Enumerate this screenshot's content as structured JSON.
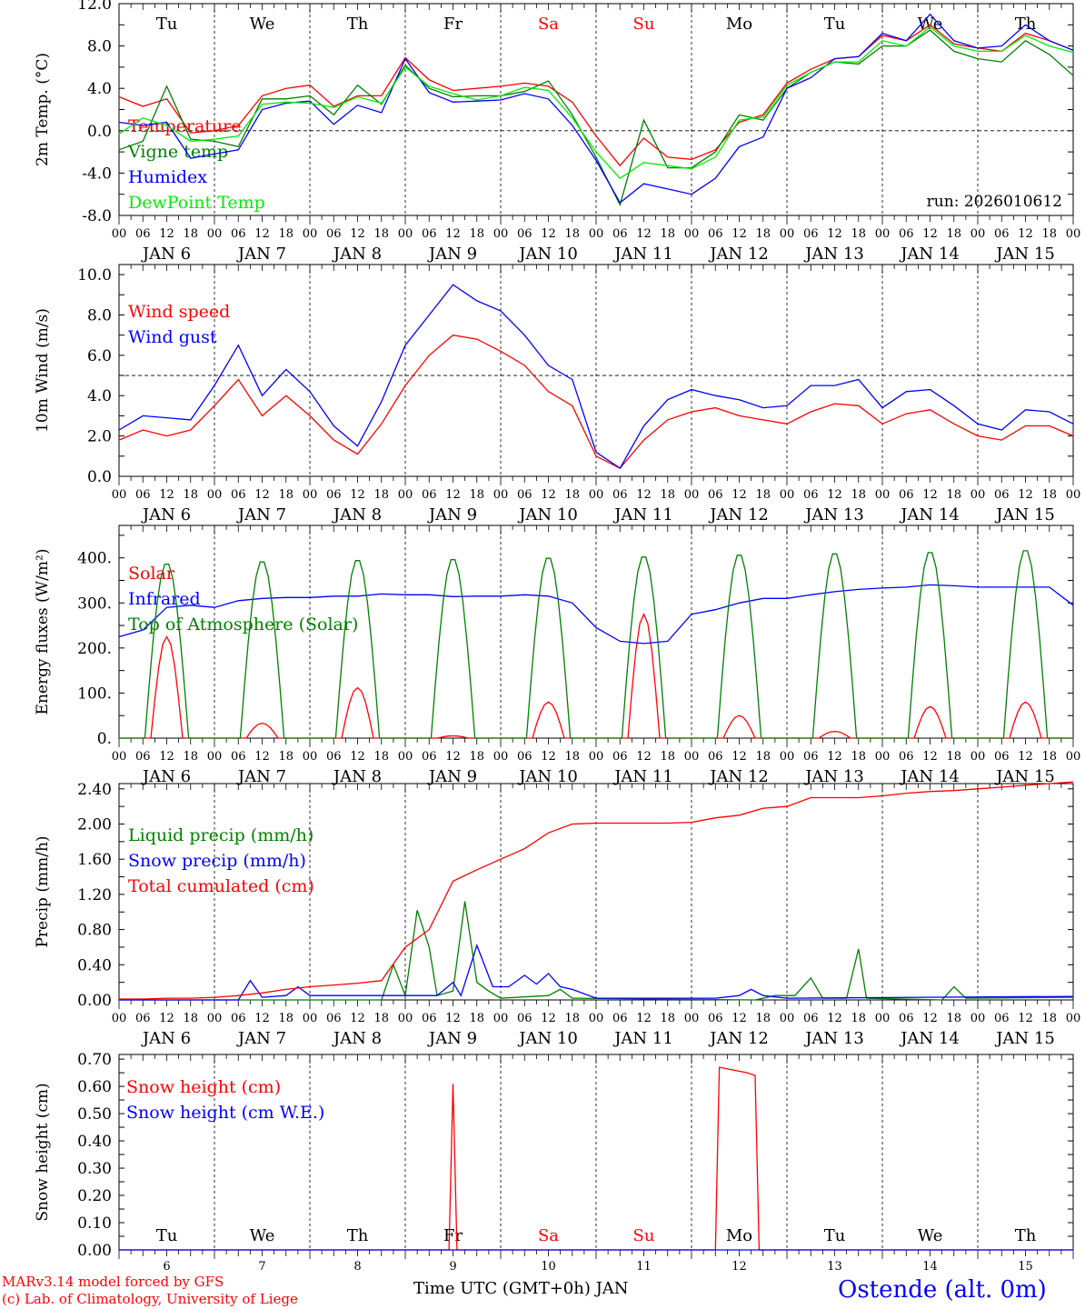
{
  "colors": {
    "red": "#ff0000",
    "dkgreen": "#008000",
    "blue": "#0000ff",
    "green": "#00ee00",
    "black": "#000000"
  },
  "days": [
    "Tu",
    "We",
    "Th",
    "Fr",
    "Sa",
    "Su",
    "Mo",
    "Tu",
    "We",
    "Th"
  ],
  "weekend_days": [
    "Sa",
    "Su"
  ],
  "dates": [
    "6",
    "7",
    "8",
    "9",
    "10",
    "11",
    "12",
    "13",
    "14",
    "15"
  ],
  "month": "JAN",
  "hour_labels": [
    "00",
    "06",
    "12",
    "18"
  ],
  "footer": {
    "model": "MARv3.14 model forced by GFS",
    "credit": "(c) Lab. of Climatology, University of Liege",
    "xlabel": "Time UTC (GMT+0h) JAN",
    "station": "Ostende (alt. 0m)"
  },
  "chart_data": [
    {
      "type": "line",
      "id": "temp",
      "ylabel": "2m Temp. (°C)",
      "ylim": [
        -8,
        12
      ],
      "yticks": [
        "12.0",
        "8.0",
        "4.0",
        "0.0",
        "-4.0",
        "-8.0"
      ],
      "annotation": "run: 2026010612",
      "hline": 0,
      "x_hours_step": 6,
      "series": [
        {
          "name": "Temperature",
          "color": "#ff0000",
          "values": [
            3.2,
            2.3,
            3.0,
            -0.2,
            0.0,
            0.5,
            3.3,
            4.0,
            4.3,
            2.3,
            3.3,
            3.3,
            6.9,
            4.8,
            3.8,
            4.0,
            4.2,
            4.5,
            4.2,
            2.7,
            -0.5,
            -3.3,
            -0.7,
            -2.5,
            -2.7,
            -1.8,
            0.8,
            1.5,
            4.5,
            5.8,
            6.8,
            7.0,
            9.0,
            8.5,
            10.0,
            8.2,
            7.8,
            7.5,
            9.2,
            8.5,
            7.6
          ]
        },
        {
          "name": "Vigne temp",
          "color": "#008000",
          "values": [
            -1.8,
            -1.0,
            4.2,
            -0.8,
            -1.0,
            -1.5,
            3.0,
            3.0,
            3.3,
            1.5,
            4.3,
            2.5,
            6.2,
            4.0,
            3.2,
            3.3,
            3.3,
            3.7,
            4.7,
            1.5,
            -2.5,
            -7.0,
            1.0,
            -3.5,
            -3.5,
            -2.0,
            1.5,
            1.0,
            4.0,
            5.5,
            6.5,
            6.3,
            8.0,
            8.0,
            9.5,
            7.5,
            6.8,
            6.5,
            8.5,
            7.2,
            5.2
          ]
        },
        {
          "name": "Humidex",
          "color": "#0000ff",
          "values": [
            0.8,
            0.5,
            0.8,
            -2.6,
            -2.2,
            -1.8,
            2.0,
            2.6,
            2.8,
            0.6,
            2.4,
            1.7,
            6.8,
            3.6,
            2.7,
            2.8,
            2.9,
            3.5,
            3.0,
            0.5,
            -2.8,
            -6.8,
            -5.0,
            -5.5,
            -6.0,
            -4.5,
            -1.5,
            -0.6,
            4.0,
            5.0,
            6.8,
            7.0,
            9.2,
            8.5,
            11.0,
            8.5,
            7.8,
            8.0,
            10.0,
            8.5,
            7.6
          ]
        },
        {
          "name": "DewPoint Temp",
          "color": "#00ee00",
          "values": [
            -0.3,
            1.2,
            0.5,
            -1.0,
            -0.8,
            -0.5,
            2.5,
            2.7,
            2.6,
            2.2,
            3.2,
            2.6,
            6.0,
            4.2,
            3.5,
            2.9,
            3.3,
            4.1,
            3.8,
            1.2,
            -2.0,
            -4.5,
            -3.0,
            -3.3,
            -3.6,
            -2.5,
            1.0,
            1.3,
            4.3,
            5.5,
            6.5,
            6.5,
            8.5,
            8.0,
            9.8,
            8.0,
            7.5,
            7.5,
            9.0,
            8.0,
            7.4
          ]
        }
      ]
    },
    {
      "type": "line",
      "id": "wind",
      "ylabel": "10m Wind (m/s)",
      "ylim": [
        0,
        10.5
      ],
      "yticks": [
        "10.0",
        "8.0",
        "6.0",
        "4.0",
        "2.0",
        "0.0"
      ],
      "hline": 5,
      "x_hours_step": 6,
      "series": [
        {
          "name": "Wind speed",
          "color": "#ff0000",
          "values": [
            1.8,
            2.3,
            2.0,
            2.3,
            3.5,
            4.8,
            3.0,
            4.0,
            3.0,
            1.8,
            1.1,
            2.6,
            4.5,
            6.0,
            7.0,
            6.8,
            6.2,
            5.5,
            4.2,
            3.5,
            1.0,
            0.4,
            1.8,
            2.8,
            3.2,
            3.4,
            3.0,
            2.8,
            2.6,
            3.2,
            3.6,
            3.5,
            2.6,
            3.1,
            3.3,
            2.6,
            2.0,
            1.8,
            2.5,
            2.5,
            2.0
          ]
        },
        {
          "name": "Wind gust",
          "color": "#0000ff",
          "values": [
            2.3,
            3.0,
            2.9,
            2.8,
            4.5,
            6.5,
            4.0,
            5.3,
            4.2,
            2.5,
            1.5,
            3.7,
            6.5,
            8.0,
            9.5,
            8.7,
            8.2,
            7.0,
            5.5,
            4.8,
            1.2,
            0.4,
            2.5,
            3.8,
            4.3,
            4.0,
            3.8,
            3.4,
            3.5,
            4.5,
            4.5,
            4.8,
            3.4,
            4.2,
            4.3,
            3.5,
            2.6,
            2.3,
            3.3,
            3.2,
            2.6
          ]
        }
      ]
    },
    {
      "type": "line",
      "id": "energy",
      "ylabel": "Energy fluxes (W/m²)",
      "ylim": [
        0,
        472
      ],
      "yticks": [
        "400.",
        "300.",
        "200.",
        "100.",
        "0."
      ],
      "x_hours_step": 6,
      "series": [
        {
          "name": "Solar",
          "color": "#ff0000",
          "daily_peaks": [
            225,
            33,
            112,
            5,
            80,
            275,
            50,
            15,
            70,
            80
          ],
          "daylight_hours": [
            8,
            16
          ]
        },
        {
          "name": "Infrared",
          "color": "#0000ff",
          "values": [
            225,
            240,
            290,
            295,
            290,
            305,
            310,
            312,
            312,
            315,
            315,
            320,
            318,
            318,
            314,
            315,
            315,
            318,
            315,
            300,
            245,
            215,
            210,
            215,
            275,
            285,
            300,
            310,
            310,
            318,
            325,
            330,
            333,
            335,
            340,
            338,
            335,
            335,
            335,
            335,
            295
          ]
        },
        {
          "name": "Top of Atmosphere (Solar)",
          "color": "#008000",
          "daily_peaks": [
            390,
            395,
            398,
            400,
            403,
            406,
            410,
            413,
            416,
            420
          ],
          "daylight_hours": [
            6.5,
            17.5
          ]
        }
      ]
    },
    {
      "type": "line",
      "id": "precip",
      "ylabel": "Precip (mm/h)",
      "ylim": [
        0,
        2.46
      ],
      "yticks": [
        "2.40",
        "2.00",
        "1.60",
        "1.20",
        "0.80",
        "0.40",
        "0.00"
      ],
      "x_hours_step": 6,
      "series": [
        {
          "name": "Liquid precip (mm/h)",
          "color": "#008000",
          "points": [
            [
              0,
              0
            ],
            [
              66,
              0
            ],
            [
              69,
              0.4
            ],
            [
              72,
              0.05
            ],
            [
              75,
              1.02
            ],
            [
              78,
              0.6
            ],
            [
              80,
              0.05
            ],
            [
              84,
              0.1
            ],
            [
              87,
              1.12
            ],
            [
              90,
              0.2
            ],
            [
              93,
              0.1
            ],
            [
              96,
              0.02
            ],
            [
              108,
              0.05
            ],
            [
              111,
              0.12
            ],
            [
              114,
              0.02
            ],
            [
              160,
              0
            ],
            [
              165,
              0.05
            ],
            [
              170,
              0.05
            ],
            [
              174,
              0.25
            ],
            [
              177,
              0.02
            ],
            [
              183,
              0.02
            ],
            [
              186,
              0.58
            ],
            [
              188,
              0.02
            ],
            [
              207,
              0
            ],
            [
              210,
              0.15
            ],
            [
              213,
              0.02
            ],
            [
              240,
              0.03
            ]
          ]
        },
        {
          "name": "Snow precip (mm/h)",
          "color": "#0000ff",
          "points": [
            [
              0,
              0
            ],
            [
              30,
              0
            ],
            [
              33,
              0.22
            ],
            [
              36,
              0.03
            ],
            [
              42,
              0.05
            ],
            [
              45,
              0.15
            ],
            [
              48,
              0.05
            ],
            [
              80,
              0.05
            ],
            [
              84,
              0.2
            ],
            [
              86,
              0.05
            ],
            [
              90,
              0.62
            ],
            [
              94,
              0.15
            ],
            [
              98,
              0.15
            ],
            [
              102,
              0.28
            ],
            [
              105,
              0.18
            ],
            [
              108,
              0.3
            ],
            [
              111,
              0.15
            ],
            [
              114,
              0.12
            ],
            [
              120,
              0.02
            ],
            [
              150,
              0.02
            ],
            [
              156,
              0.05
            ],
            [
              159,
              0.12
            ],
            [
              162,
              0.05
            ],
            [
              168,
              0.02
            ],
            [
              240,
              0.04
            ]
          ]
        },
        {
          "name": "Total cumulated (cm)",
          "color": "#ff0000",
          "values": [
            0.01,
            0.01,
            0.02,
            0.02,
            0.03,
            0.05,
            0.08,
            0.12,
            0.15,
            0.17,
            0.19,
            0.22,
            0.6,
            0.8,
            1.35,
            1.48,
            1.6,
            1.72,
            1.9,
            2.0,
            2.01,
            2.01,
            2.01,
            2.01,
            2.02,
            2.07,
            2.1,
            2.18,
            2.2,
            2.3,
            2.3,
            2.3,
            2.32,
            2.35,
            2.37,
            2.38,
            2.4,
            2.42,
            2.44,
            2.46,
            2.48
          ]
        }
      ]
    },
    {
      "type": "line",
      "id": "snow",
      "ylabel": "Snow height (cm)",
      "ylim": [
        0,
        0.717
      ],
      "yticks": [
        "0.70",
        "0.60",
        "0.50",
        "0.40",
        "0.30",
        "0.20",
        "0.10",
        "0.00"
      ],
      "x_hours_step": 6,
      "series": [
        {
          "name": "Snow height (cm)",
          "color": "#ff0000",
          "points": [
            [
              0,
              0
            ],
            [
              83,
              0
            ],
            [
              84,
              0.61
            ],
            [
              85,
              0
            ],
            [
              150,
              0
            ],
            [
              151,
              0.67
            ],
            [
              158,
              0.65
            ],
            [
              160,
              0.64
            ],
            [
              161,
              0
            ],
            [
              240,
              0
            ]
          ]
        },
        {
          "name": "Snow height (cm W.E.)",
          "color": "#0000ff",
          "points": [
            [
              0,
              0
            ],
            [
              240,
              0
            ]
          ]
        }
      ]
    }
  ]
}
